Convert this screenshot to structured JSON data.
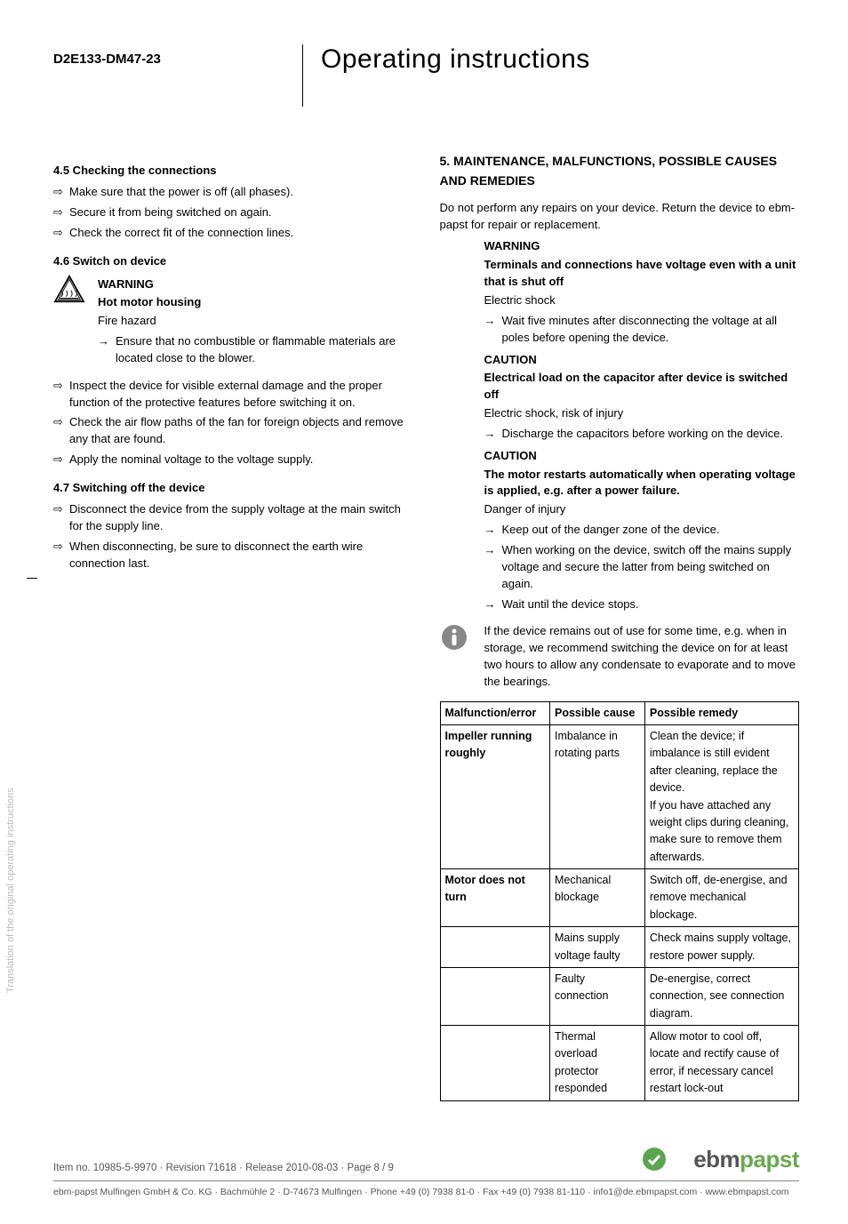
{
  "header": {
    "model": "D2E133-DM47-23",
    "title": "Operating instructions"
  },
  "left": {
    "s45": {
      "heading": "4.5 Checking the connections",
      "items": [
        "Make sure that the power is off (all phases).",
        "Secure it from being switched on again.",
        "Check the correct fit of the connection lines."
      ]
    },
    "s46": {
      "heading": "4.6 Switch on device",
      "warn": {
        "label": "WARNING",
        "title": "Hot motor housing",
        "sub": "Fire hazard",
        "arrow": "Ensure that no combustible or flammable materials are located close to the blower."
      },
      "items": [
        "Inspect the device for visible external damage and the proper function of the protective features before switching it on.",
        "Check the air flow paths of the fan for foreign objects and remove any that are found.",
        "Apply the nominal voltage to the voltage supply."
      ]
    },
    "s47": {
      "heading": "4.7 Switching off the device",
      "items": [
        "Disconnect the device from the supply voltage at the main switch for the supply line.",
        "When disconnecting, be sure to disconnect the earth wire connection last."
      ]
    }
  },
  "right": {
    "h5": "5. MAINTENANCE, MALFUNCTIONS, POSSIBLE CAUSES AND REMEDIES",
    "intro": "Do not perform any repairs on your device. Return the device to ebm-papst for repair or replacement.",
    "w1": {
      "label": "WARNING",
      "title": "Terminals and connections have voltage even with a unit that is shut off",
      "sub": "Electric shock",
      "arrow": "Wait five minutes after disconnecting the voltage at all poles before opening the device."
    },
    "c1": {
      "label": "CAUTION",
      "title": "Electrical load on the capacitor after device is switched off",
      "sub": "Electric shock, risk of injury",
      "arrow": "Discharge the capacitors before working on the device."
    },
    "c2": {
      "label": "CAUTION",
      "title": "The motor restarts automatically when operating voltage is applied, e.g. after a power failure.",
      "sub": "Danger of injury",
      "arrows": [
        "Keep out of the danger zone of the device.",
        "When working on the device, switch off the mains supply voltage and secure the latter from being switched on again.",
        "Wait until the device stops."
      ]
    },
    "info": "If the device remains out of use for some time, e.g. when in storage, we recommend switching the device on for at least two hours to allow any condensate to evaporate and to move the bearings.",
    "table": {
      "headers": [
        "Malfunction/error",
        "Possible cause",
        "Possible remedy"
      ],
      "rows": [
        {
          "c0": "Impeller running roughly",
          "c0bold": true,
          "c1": "Imbalance in rotating parts",
          "c2": "Clean the device; if imbalance is still evident after cleaning, replace the device.\nIf you have attached any weight clips during cleaning, make sure to remove them afterwards."
        },
        {
          "c0": "Motor does not turn",
          "c0bold": true,
          "c1": "Mechanical blockage",
          "c2": "Switch off, de-energise, and remove mechanical blockage."
        },
        {
          "c0": "",
          "c0bold": false,
          "c1": "Mains supply voltage faulty",
          "c2": "Check mains supply voltage,\nrestore power supply."
        },
        {
          "c0": "",
          "c0bold": false,
          "c1": "Faulty connection",
          "c2": "De-energise, correct connection, see connection diagram."
        },
        {
          "c0": "",
          "c0bold": false,
          "c1": "Thermal overload protector responded",
          "c2": "Allow motor to cool off, locate and rectify cause of error, if necessary cancel restart lock-out"
        }
      ]
    }
  },
  "side": "Translation of the original operating instructions",
  "footer": {
    "meta": "Item no. 10985-5-9970 · Revision 71618 · Release 2010-08-03 · Page 8 / 9",
    "brand1": "ebm",
    "brand2": "papst",
    "line": "ebm-papst Mulfingen GmbH & Co. KG · Bachmühle 2 · D-74673 Mulfingen · Phone +49 (0) 7938 81-0 · Fax +49 (0) 7938 81-110 · info1@de.ebmpapst.com · www.ebmpapst.com"
  }
}
